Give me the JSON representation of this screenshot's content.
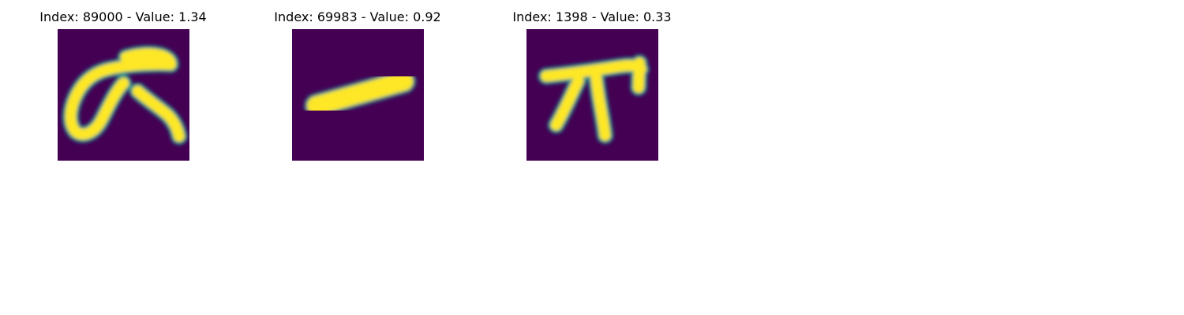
{
  "panels": [
    {
      "title": "Index: 89000 - Value: 1.34",
      "glyph": "sigma-like-glyph"
    },
    {
      "title": "Index: 69983 - Value: 0.92",
      "glyph": "dash-glyph"
    },
    {
      "title": "Index: 1398 - Value: 0.33",
      "glyph": "pi-glyph"
    }
  ],
  "colors": {
    "background": "#440154",
    "edge": "#21918c",
    "mid": "#5ec962",
    "stroke": "#fde725"
  }
}
